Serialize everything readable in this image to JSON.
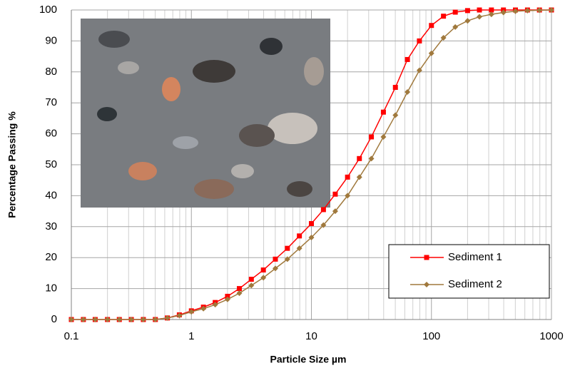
{
  "chart_data": {
    "type": "line",
    "x_label": "Particle Size µm",
    "y_label": "Percentage Passing %",
    "log_x": true,
    "grid": true,
    "legend": "lower right",
    "xlim": [
      0.1,
      1000
    ],
    "xticks": [
      0.1,
      1,
      10,
      100,
      1000
    ],
    "ylim": [
      0,
      100
    ],
    "yticks": [
      0,
      10,
      20,
      30,
      40,
      50,
      60,
      70,
      80,
      90,
      100
    ],
    "x": [
      0.1,
      0.126,
      0.158,
      0.2,
      0.251,
      0.316,
      0.398,
      0.501,
      0.631,
      0.794,
      1,
      1.26,
      1.58,
      2,
      2.51,
      3.16,
      3.98,
      5.01,
      6.31,
      7.94,
      10,
      12.6,
      15.8,
      20,
      25.1,
      31.6,
      39.8,
      50.1,
      63.1,
      79.4,
      100,
      126,
      158,
      200,
      251,
      316,
      398,
      501,
      631,
      794,
      1000
    ],
    "series": [
      {
        "name": "Sediment 1",
        "color": "#ff0000",
        "marker": "square",
        "values": [
          0,
          0,
          0,
          0,
          0,
          0,
          0,
          0,
          0.5,
          1.5,
          2.8,
          4,
          5.5,
          7.5,
          10,
          13,
          16,
          19.5,
          23,
          27,
          31,
          35.5,
          40.5,
          46,
          52,
          59,
          67,
          75,
          84,
          90,
          95,
          98,
          99.3,
          99.8,
          100,
          100,
          100,
          100,
          100,
          100,
          100
        ]
      },
      {
        "name": "Sediment 2",
        "color": "#a0793d",
        "marker": "diamond",
        "values": [
          0,
          0,
          0,
          0,
          0,
          0,
          0,
          0,
          0.5,
          1.3,
          2.5,
          3.5,
          4.8,
          6.5,
          8.5,
          11,
          13.5,
          16.5,
          19.5,
          23,
          26.5,
          30.5,
          35,
          40,
          46,
          52,
          59,
          66,
          73.5,
          80.5,
          86,
          91,
          94.5,
          96.5,
          97.8,
          98.6,
          99.2,
          99.6,
          99.8,
          99.9,
          100
        ]
      }
    ]
  }
}
